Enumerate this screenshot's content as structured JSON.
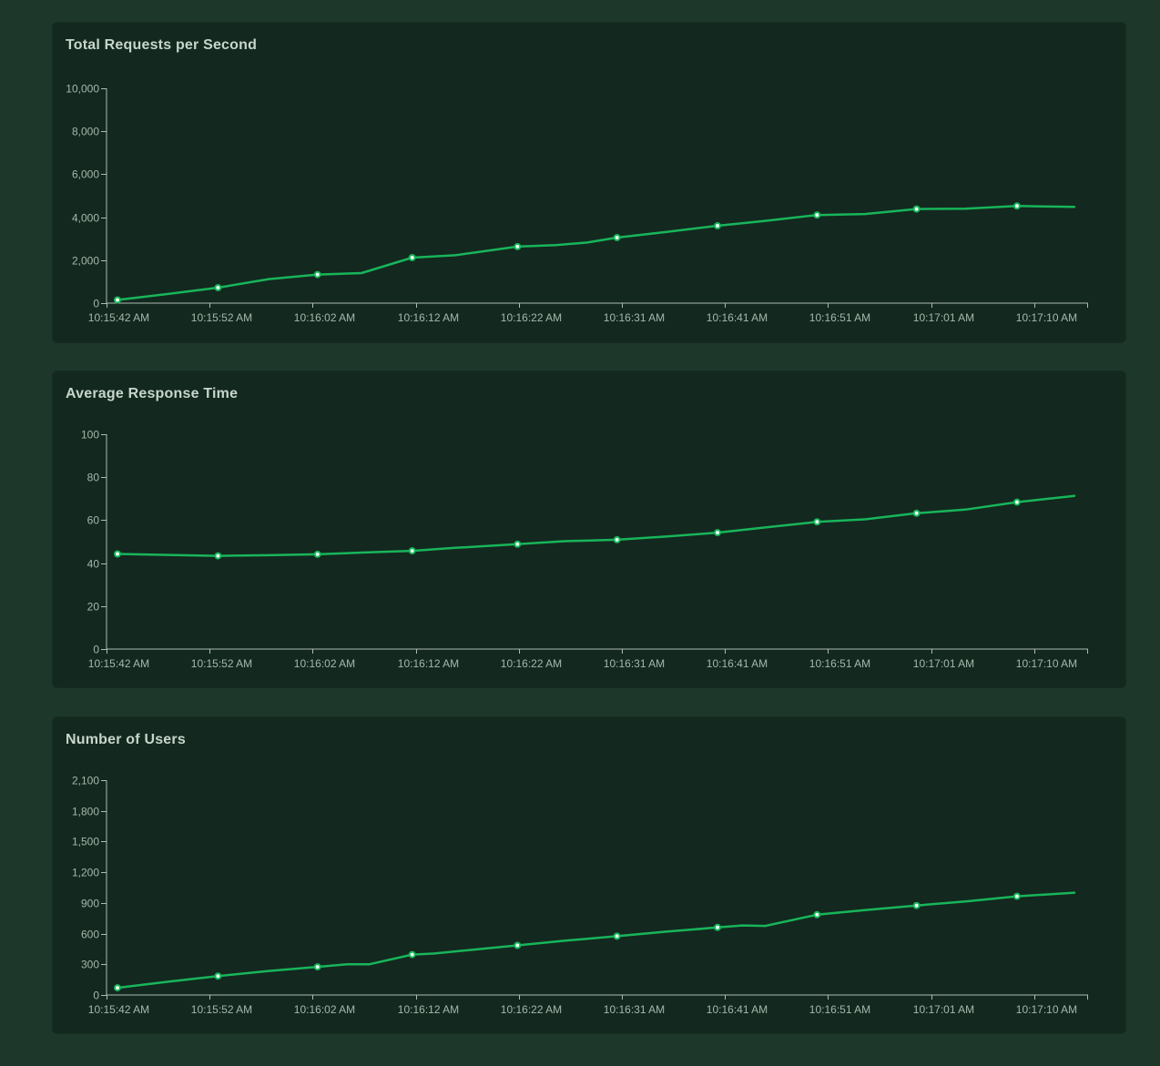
{
  "page": {
    "background_color": "#1d372b",
    "card_background_color": "#13281f",
    "line_color": "#18b55a",
    "marker_fill_color": "#eafff3",
    "title_color": "#c7d6cb",
    "axis_text_color": "#a6b8ab",
    "axis_line_color": "#aebcb2"
  },
  "chart_data": [
    {
      "type": "line",
      "title": "Total Requests per Second",
      "xlabel": "",
      "ylabel": "",
      "ylim": [
        0,
        10000
      ],
      "grid": false,
      "legend": "none",
      "x_tick_labels": [
        "10:15:42 AM",
        "10:15:52 AM",
        "10:16:02 AM",
        "10:16:12 AM",
        "10:16:22 AM",
        "10:16:31 AM",
        "10:16:41 AM",
        "10:16:51 AM",
        "10:17:01 AM",
        "10:17:10 AM"
      ],
      "y_tick_values": [
        0,
        2000,
        4000,
        6000,
        8000,
        10000
      ],
      "y_tick_labels": [
        "0",
        "2,000",
        "4,000",
        "6,000",
        "8,000",
        "10,000"
      ],
      "values_at_x_labels": [
        150,
        720,
        1330,
        2120,
        2630,
        3050,
        3600,
        4100,
        4380,
        4520
      ],
      "line_points": [
        [
          0,
          150,
          1
        ],
        [
          0.053,
          430,
          0
        ],
        [
          0.105,
          720,
          1
        ],
        [
          0.158,
          1120,
          0
        ],
        [
          0.209,
          1330,
          1
        ],
        [
          0.255,
          1400,
          0
        ],
        [
          0.308,
          2120,
          1
        ],
        [
          0.353,
          2230,
          0
        ],
        [
          0.418,
          2630,
          1
        ],
        [
          0.458,
          2700,
          0
        ],
        [
          0.491,
          2820,
          0
        ],
        [
          0.522,
          3050,
          1
        ],
        [
          0.575,
          3320,
          0
        ],
        [
          0.627,
          3600,
          1
        ],
        [
          0.677,
          3830,
          0
        ],
        [
          0.731,
          4100,
          1
        ],
        [
          0.781,
          4150,
          0
        ],
        [
          0.835,
          4380,
          1
        ],
        [
          0.886,
          4400,
          0
        ],
        [
          0.94,
          4520,
          1
        ],
        [
          1,
          4480,
          0
        ]
      ]
    },
    {
      "type": "line",
      "title": "Average Response Time",
      "xlabel": "",
      "ylabel": "",
      "ylim": [
        0,
        100
      ],
      "grid": false,
      "legend": "none",
      "x_tick_labels": [
        "10:15:42 AM",
        "10:15:52 AM",
        "10:16:02 AM",
        "10:16:12 AM",
        "10:16:22 AM",
        "10:16:31 AM",
        "10:16:41 AM",
        "10:16:51 AM",
        "10:17:01 AM",
        "10:17:10 AM"
      ],
      "y_tick_values": [
        0,
        20,
        40,
        60,
        80,
        100
      ],
      "y_tick_labels": [
        "0",
        "20",
        "40",
        "60",
        "80",
        "100"
      ],
      "values_at_x_labels": [
        44.3,
        43.4,
        44.1,
        45.7,
        48.8,
        50.9,
        54.2,
        59.2,
        63.2,
        68.4
      ],
      "line_points": [
        [
          0,
          44.3,
          1
        ],
        [
          0.053,
          43.8,
          0
        ],
        [
          0.105,
          43.4,
          1
        ],
        [
          0.158,
          43.7,
          0
        ],
        [
          0.209,
          44.1,
          1
        ],
        [
          0.255,
          44.9,
          0
        ],
        [
          0.308,
          45.7,
          1
        ],
        [
          0.353,
          47.1,
          0
        ],
        [
          0.418,
          48.8,
          1
        ],
        [
          0.467,
          50.2,
          0
        ],
        [
          0.522,
          50.9,
          1
        ],
        [
          0.575,
          52.4,
          0
        ],
        [
          0.627,
          54.2,
          1
        ],
        [
          0.677,
          56.6,
          0
        ],
        [
          0.731,
          59.2,
          1
        ],
        [
          0.781,
          60.4,
          0
        ],
        [
          0.835,
          63.2,
          1
        ],
        [
          0.886,
          64.9,
          0
        ],
        [
          0.94,
          68.4,
          1
        ],
        [
          1,
          71.3,
          0
        ]
      ]
    },
    {
      "type": "line",
      "title": "Number of Users",
      "xlabel": "",
      "ylabel": "",
      "ylim": [
        0,
        2100
      ],
      "grid": false,
      "legend": "none",
      "x_tick_labels": [
        "10:15:42 AM",
        "10:15:52 AM",
        "10:16:02 AM",
        "10:16:12 AM",
        "10:16:22 AM",
        "10:16:31 AM",
        "10:16:41 AM",
        "10:16:51 AM",
        "10:17:01 AM",
        "10:17:10 AM"
      ],
      "y_tick_values": [
        0,
        300,
        600,
        900,
        1200,
        1500,
        1800,
        2100
      ],
      "y_tick_labels": [
        "0",
        "300",
        "600",
        "900",
        "1,200",
        "1,500",
        "1,800",
        "2,100"
      ],
      "values_at_x_labels": [
        70,
        185,
        275,
        395,
        485,
        575,
        660,
        785,
        875,
        965
      ],
      "line_points": [
        [
          0,
          70,
          1
        ],
        [
          0.053,
          130,
          0
        ],
        [
          0.105,
          185,
          1
        ],
        [
          0.158,
          235,
          0
        ],
        [
          0.209,
          275,
          1
        ],
        [
          0.24,
          300,
          0
        ],
        [
          0.263,
          300,
          0
        ],
        [
          0.308,
          395,
          1
        ],
        [
          0.33,
          405,
          0
        ],
        [
          0.418,
          485,
          1
        ],
        [
          0.467,
          530,
          0
        ],
        [
          0.522,
          575,
          1
        ],
        [
          0.575,
          620,
          0
        ],
        [
          0.627,
          660,
          1
        ],
        [
          0.653,
          680,
          0
        ],
        [
          0.677,
          675,
          0
        ],
        [
          0.731,
          785,
          1
        ],
        [
          0.781,
          830,
          0
        ],
        [
          0.835,
          875,
          1
        ],
        [
          0.886,
          915,
          0
        ],
        [
          0.94,
          965,
          1
        ],
        [
          1,
          1000,
          0
        ]
      ]
    }
  ]
}
